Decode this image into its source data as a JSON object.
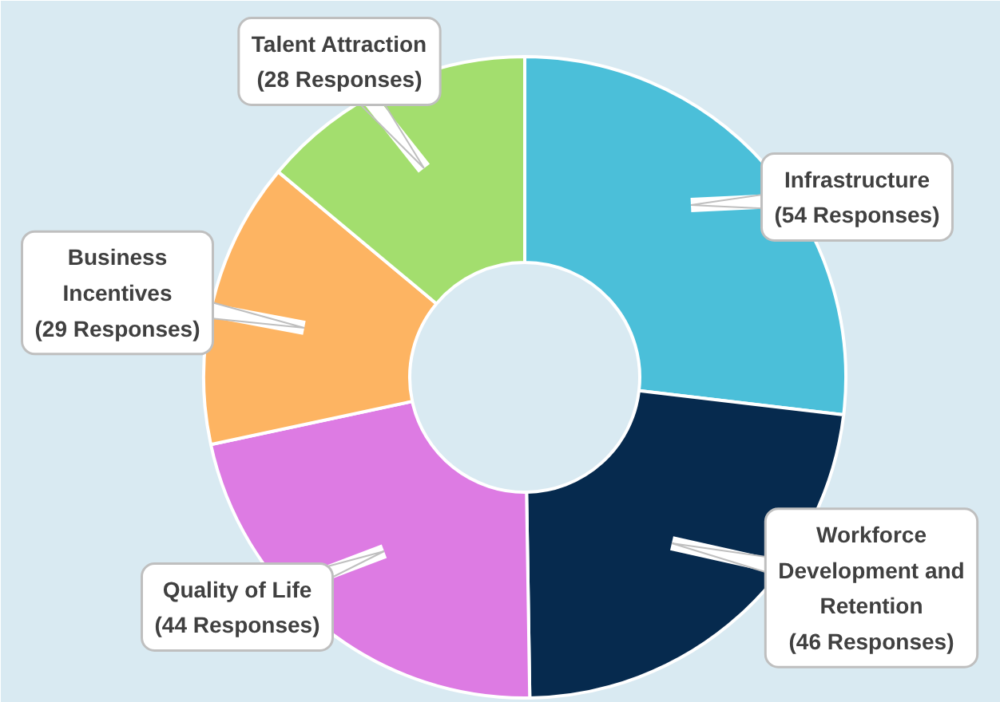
{
  "chart_data": {
    "type": "donut",
    "categories": [
      "Infrastructure",
      "Workforce Development and Retention",
      "Quality of Life",
      "Business Incentives",
      "Talent Attraction"
    ],
    "values": [
      54,
      46,
      44,
      29,
      28
    ],
    "colors": [
      "#4bbfd9",
      "#062a4e",
      "#dd7be3",
      "#fdb462",
      "#a3de6e"
    ],
    "value_labels": [
      "(54 Responses)",
      "(46 Responses)",
      "(44 Responses)",
      "(29 Responses)",
      "(28 Responses)"
    ]
  }
}
